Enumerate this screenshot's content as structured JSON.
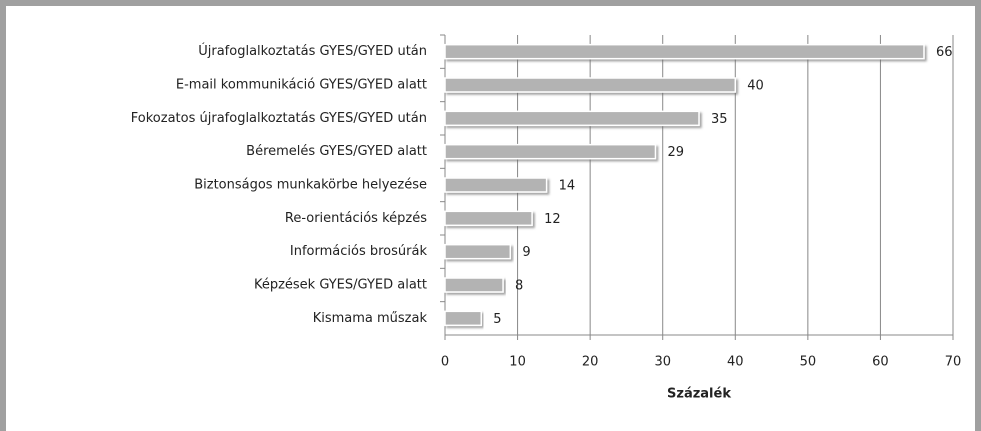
{
  "chart_data": {
    "type": "bar",
    "orientation": "horizontal",
    "categories": [
      "Újrafoglalkoztatás GYES/GYED után",
      "E-mail kommunikáció GYES/GYED alatt",
      "Fokozatos újrafoglalkoztatás GYES/GYED után",
      "Béremelés GYES/GYED alatt",
      "Biztonságos munkakörbe helyezése",
      "Re-orientációs képzés",
      "Információs brosúrák",
      "Képzések GYES/GYED alatt",
      "Kismama műszak"
    ],
    "values": [
      66,
      40,
      35,
      29,
      14,
      12,
      9,
      8,
      5
    ],
    "color": "#b3b3b3",
    "xlim": [
      0,
      70
    ],
    "xticks": [
      0,
      10,
      20,
      30,
      40,
      50,
      60,
      70
    ],
    "xlabel": "Százalék",
    "grid": true
  }
}
